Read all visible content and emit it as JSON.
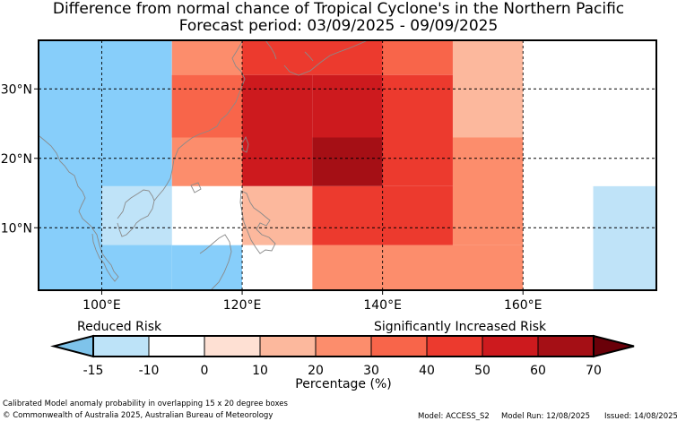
{
  "title": "Difference from normal chance of Tropical Cyclone's in the Northern Pacific",
  "subtitle": "Forecast period: 03/09/2025 - 09/09/2025",
  "map": {
    "lon_ticks": [
      "100°E",
      "120°E",
      "140°E",
      "160°E"
    ],
    "lat_ticks": [
      "30°N",
      "20°N",
      "10°N"
    ],
    "grid_style": "dashed",
    "extent": {
      "lon": [
        91,
        179
      ],
      "lat": [
        1,
        37
      ]
    },
    "cells": [
      {
        "lon": [
          91,
          110
        ],
        "lat": [
          1,
          37
        ],
        "class": -15
      },
      {
        "lon": [
          110,
          120
        ],
        "lat": [
          1,
          7.5
        ],
        "class": -15
      },
      {
        "lon": [
          100,
          110
        ],
        "lat": [
          7.5,
          16
        ],
        "class": -10
      },
      {
        "lon": [
          170,
          179
        ],
        "lat": [
          1,
          16
        ],
        "class": -10
      },
      {
        "lon": [
          110,
          120
        ],
        "lat": [
          7.5,
          16
        ],
        "class": 0
      },
      {
        "lon": [
          120,
          130
        ],
        "lat": [
          1,
          7.5
        ],
        "class": 0
      },
      {
        "lon": [
          110,
          120
        ],
        "lat": [
          16,
          37
        ],
        "class": 0
      },
      {
        "lon": [
          160,
          170
        ],
        "lat": [
          1,
          23
        ],
        "class": 0
      },
      {
        "lon": [
          160,
          170
        ],
        "lat": [
          32,
          37
        ],
        "class": 0
      },
      {
        "lon": [
          170,
          179
        ],
        "lat": [
          16,
          37
        ],
        "class": 0
      },
      {
        "lon": [
          120,
          130
        ],
        "lat": [
          7.5,
          16
        ],
        "class": 10
      },
      {
        "lon": [
          150,
          160
        ],
        "lat": [
          23,
          37
        ],
        "class": 10
      },
      {
        "lon": [
          130,
          160
        ],
        "lat": [
          1,
          7.5
        ],
        "class": 20
      },
      {
        "lon": [
          150,
          160
        ],
        "lat": [
          7.5,
          23
        ],
        "class": 20
      },
      {
        "lon": [
          110,
          120
        ],
        "lat": [
          16,
          32
        ],
        "class": 20
      },
      {
        "lon": [
          110,
          120
        ],
        "lat": [
          32,
          37
        ],
        "class": 20
      },
      {
        "lon": [
          110,
          120
        ],
        "lat": [
          23,
          32
        ],
        "class": 30
      },
      {
        "lon": [
          140,
          150
        ],
        "lat": [
          32,
          37
        ],
        "class": 30
      },
      {
        "lon": [
          120,
          140
        ],
        "lat": [
          32,
          37
        ],
        "class": 40
      },
      {
        "lon": [
          130,
          150
        ],
        "lat": [
          7.5,
          16
        ],
        "class": 40
      },
      {
        "lon": [
          140,
          150
        ],
        "lat": [
          16,
          32
        ],
        "class": 40
      },
      {
        "lon": [
          120,
          130
        ],
        "lat": [
          16,
          32
        ],
        "class": 50
      },
      {
        "lon": [
          130,
          140
        ],
        "lat": [
          23,
          32
        ],
        "class": 50
      },
      {
        "lon": [
          130,
          140
        ],
        "lat": [
          16,
          23
        ],
        "class": 60
      }
    ]
  },
  "colorbar": {
    "label": "Percentage (%)",
    "low_label": "Reduced Risk",
    "high_label": "Significantly Increased Risk",
    "ticks": [
      "-15",
      "-10",
      "0",
      "10",
      "20",
      "30",
      "40",
      "50",
      "60",
      "70"
    ],
    "colors": {
      "under": "#7ec3ea",
      "-15": "#bde3f8",
      "-10": "#ffffff",
      "0": "#fee0d3",
      "10": "#fcb89d",
      "20": "#fc8d6c",
      "30": "#f8654a",
      "40": "#ec3a2e",
      "50": "#cd1a1e",
      "60": "#a50f15",
      "over": "#6a0009"
    },
    "map_colors": {
      "-15": "#87cefa",
      "-10": "#bfe3f8",
      "0": "#ffffff",
      "10": "#fcb89d",
      "20": "#fc8d6c",
      "30": "#f8654a",
      "40": "#ec3a2e",
      "50": "#cd1a1e",
      "60": "#a50f15"
    }
  },
  "footer": {
    "description": "Calibrated Model anomaly probability in overlapping 15 x 20 degree boxes",
    "copyright": "© Commonwealth of Australia 2025, Australian Bureau of Meteorology",
    "model": "Model: ACCESS_S2",
    "run": "Model Run: 12/08/2025",
    "issued": "Issued: 14/08/2025"
  }
}
